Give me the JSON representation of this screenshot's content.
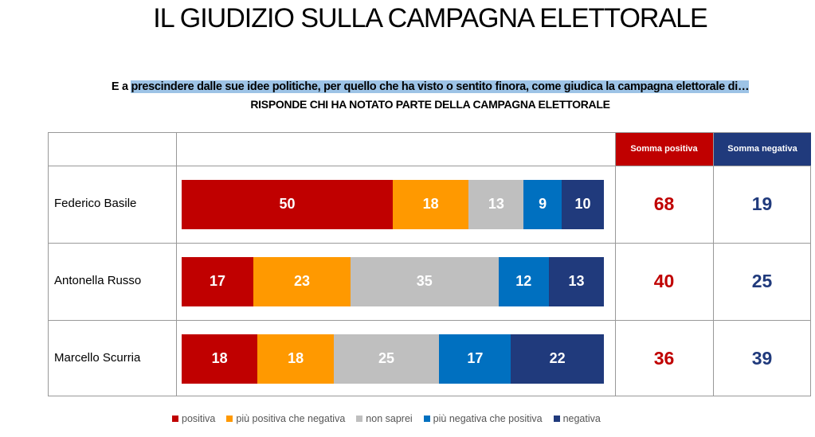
{
  "title": "IL GIUDIZIO SULLA CAMPAGNA ELETTORALE",
  "question_prefix": "E a ",
  "question": "prescindere dalle sue idee politiche, per quello che ha visto o sentito finora, come giudica la campagna elettorale di…",
  "subtitle": "RISPONDE CHI HA NOTATO PARTE DELLA CAMPAGNA ELETTORALE",
  "headers": {
    "pos": "Somma positiva",
    "neg": "Somma negativa"
  },
  "colors": {
    "positiva": "#c00000",
    "piu_positiva": "#ff9900",
    "non_saprei": "#bfbfbf",
    "piu_negativa": "#0070c0",
    "negativa": "#203a7c"
  },
  "chart_data": {
    "type": "bar",
    "stacked": true,
    "orientation": "horizontal",
    "categories": [
      "Federico Basile",
      "Antonella Russo",
      "Marcello Scurria"
    ],
    "series": [
      {
        "name": "positiva",
        "values": [
          50,
          17,
          18
        ]
      },
      {
        "name": "più positiva che negativa",
        "values": [
          18,
          23,
          18
        ]
      },
      {
        "name": "non saprei",
        "values": [
          13,
          35,
          25
        ]
      },
      {
        "name": "più negativa che positiva",
        "values": [
          9,
          12,
          17
        ]
      },
      {
        "name": "negativa",
        "values": [
          10,
          13,
          22
        ]
      }
    ],
    "somma_positiva": [
      68,
      40,
      36
    ],
    "somma_negativa": [
      19,
      25,
      39
    ],
    "legend": "bottom"
  }
}
